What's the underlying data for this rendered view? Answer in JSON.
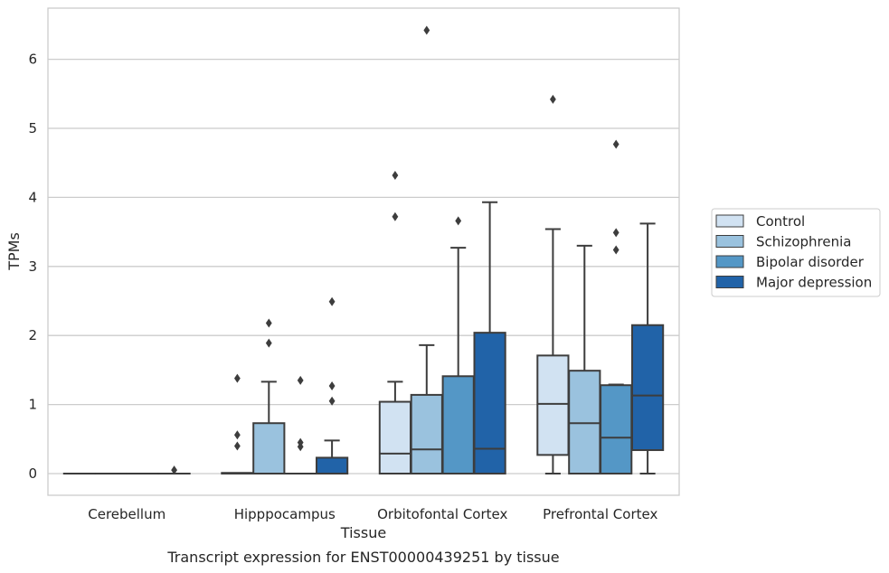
{
  "caption": "Transcript expression for ENST00000439251 by tissue",
  "chart_data": {
    "type": "box",
    "xlabel": "Tissue",
    "ylabel": "TPMs",
    "ylim": [
      -0.3,
      6.75
    ],
    "yticks": [
      0,
      1,
      2,
      3,
      4,
      5,
      6
    ],
    "grid": "horizontal",
    "legend_position": "right",
    "categories": [
      "Cerebellum",
      "Hipppocampus",
      "Orbitofontal Cortex",
      "Prefrontal Cortex"
    ],
    "series": [
      {
        "name": "Control",
        "color": "#d1e2f2",
        "boxes": [
          {
            "whisker_low": 0,
            "q1": 0,
            "median": 0,
            "q3": 0,
            "whisker_high": 0,
            "outliers": []
          },
          {
            "whisker_low": 0,
            "q1": 0,
            "median": 0,
            "q3": 0.01,
            "whisker_high": 0.01,
            "outliers": [
              0.4,
              0.56,
              1.38
            ]
          },
          {
            "whisker_low": 0,
            "q1": 0,
            "median": 0.29,
            "q3": 1.04,
            "whisker_high": 1.33,
            "outliers": [
              3.72,
              4.32
            ]
          },
          {
            "whisker_low": 0,
            "q1": 0.27,
            "median": 1.01,
            "q3": 1.71,
            "whisker_high": 3.54,
            "outliers": [
              5.42
            ]
          }
        ]
      },
      {
        "name": "Schizophrenia",
        "color": "#9ac2de",
        "boxes": [
          {
            "whisker_low": 0,
            "q1": 0,
            "median": 0,
            "q3": 0,
            "whisker_high": 0,
            "outliers": []
          },
          {
            "whisker_low": 0,
            "q1": 0,
            "median": 0,
            "q3": 0.73,
            "whisker_high": 1.33,
            "outliers": [
              1.89,
              2.18
            ]
          },
          {
            "whisker_low": 0,
            "q1": 0,
            "median": 0.35,
            "q3": 1.14,
            "whisker_high": 1.86,
            "outliers": [
              6.42
            ]
          },
          {
            "whisker_low": 0,
            "q1": 0,
            "median": 0.73,
            "q3": 1.49,
            "whisker_high": 3.3,
            "outliers": []
          }
        ]
      },
      {
        "name": "Bipolar disorder",
        "color": "#5497c6",
        "boxes": [
          {
            "whisker_low": 0,
            "q1": 0,
            "median": 0,
            "q3": 0,
            "whisker_high": 0,
            "outliers": []
          },
          {
            "whisker_low": 0,
            "q1": 0,
            "median": 0,
            "q3": 0,
            "whisker_high": 0,
            "outliers": [
              0.39,
              0.45,
              1.35
            ]
          },
          {
            "whisker_low": 0,
            "q1": 0,
            "median": 0,
            "q3": 1.41,
            "whisker_high": 3.27,
            "outliers": [
              3.66
            ]
          },
          {
            "whisker_low": 0,
            "q1": 0,
            "median": 0.52,
            "q3": 1.28,
            "whisker_high": 1.29,
            "outliers": [
              3.24,
              3.49,
              4.77
            ]
          }
        ]
      },
      {
        "name": "Major depression",
        "color": "#2163a8",
        "boxes": [
          {
            "whisker_low": 0,
            "q1": 0,
            "median": 0,
            "q3": 0,
            "whisker_high": 0,
            "outliers": [
              0.05
            ]
          },
          {
            "whisker_low": 0,
            "q1": 0,
            "median": 0,
            "q3": 0.23,
            "whisker_high": 0.48,
            "outliers": [
              1.05,
              1.27,
              2.49
            ]
          },
          {
            "whisker_low": 0,
            "q1": 0,
            "median": 0.36,
            "q3": 2.04,
            "whisker_high": 3.93,
            "outliers": []
          },
          {
            "whisker_low": 0,
            "q1": 0.34,
            "median": 1.13,
            "q3": 2.15,
            "whisker_high": 3.62,
            "outliers": []
          }
        ]
      }
    ]
  }
}
